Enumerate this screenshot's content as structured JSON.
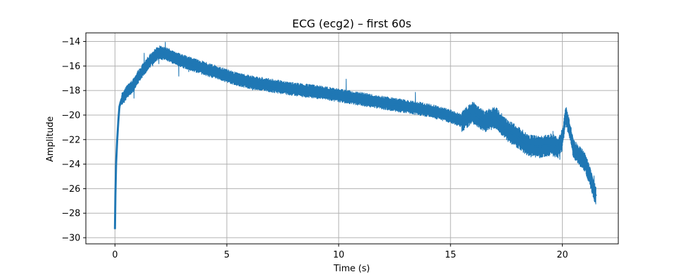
{
  "chart_data": {
    "type": "line",
    "title": "ECG (ecg2) – first 60s",
    "xlabel": "Time (s)",
    "ylabel": "Amplitude",
    "xlim": [
      -1.3,
      22.5
    ],
    "ylim": [
      -30.5,
      -13.3
    ],
    "xticks": [
      0,
      5,
      10,
      15,
      20
    ],
    "yticks": [
      -30,
      -28,
      -26,
      -24,
      -22,
      -20,
      -18,
      -16,
      -14
    ],
    "grid": true,
    "line_color": "#1f77b4",
    "series": [
      {
        "x": [
          0,
          0.02,
          0.05,
          0.1,
          0.15,
          0.2,
          0.3,
          0.5,
          0.8,
          1.0,
          1.3,
          1.6,
          1.8,
          2.0,
          2.3,
          2.6,
          3.0,
          3.5,
          4.0,
          4.5,
          5.0,
          5.5,
          6.0,
          7.0,
          8.0,
          9.0,
          10.0,
          11.0,
          12.0,
          13.0,
          14.0,
          15.0,
          15.5,
          16.0,
          16.5,
          17.0,
          17.5,
          18.0,
          18.5,
          19.0,
          19.5,
          19.8,
          20.0,
          20.15,
          20.3,
          20.5,
          20.8,
          21.0,
          21.2,
          21.4,
          21.5
        ],
        "y": [
          -29.3,
          -26.5,
          -24.0,
          -22.0,
          -20.5,
          -19.3,
          -18.7,
          -18.2,
          -17.6,
          -17.0,
          -16.2,
          -15.5,
          -15.1,
          -14.9,
          -15.0,
          -15.3,
          -15.6,
          -15.9,
          -16.2,
          -16.5,
          -16.8,
          -17.1,
          -17.3,
          -17.6,
          -17.9,
          -18.1,
          -18.4,
          -18.7,
          -19.0,
          -19.3,
          -19.6,
          -20.1,
          -20.5,
          -19.8,
          -20.5,
          -20.2,
          -21.2,
          -21.8,
          -22.5,
          -22.6,
          -22.4,
          -22.7,
          -22.0,
          -20.0,
          -21.0,
          -22.8,
          -23.4,
          -23.8,
          -24.8,
          -26.1,
          -26.6
        ]
      }
    ]
  }
}
